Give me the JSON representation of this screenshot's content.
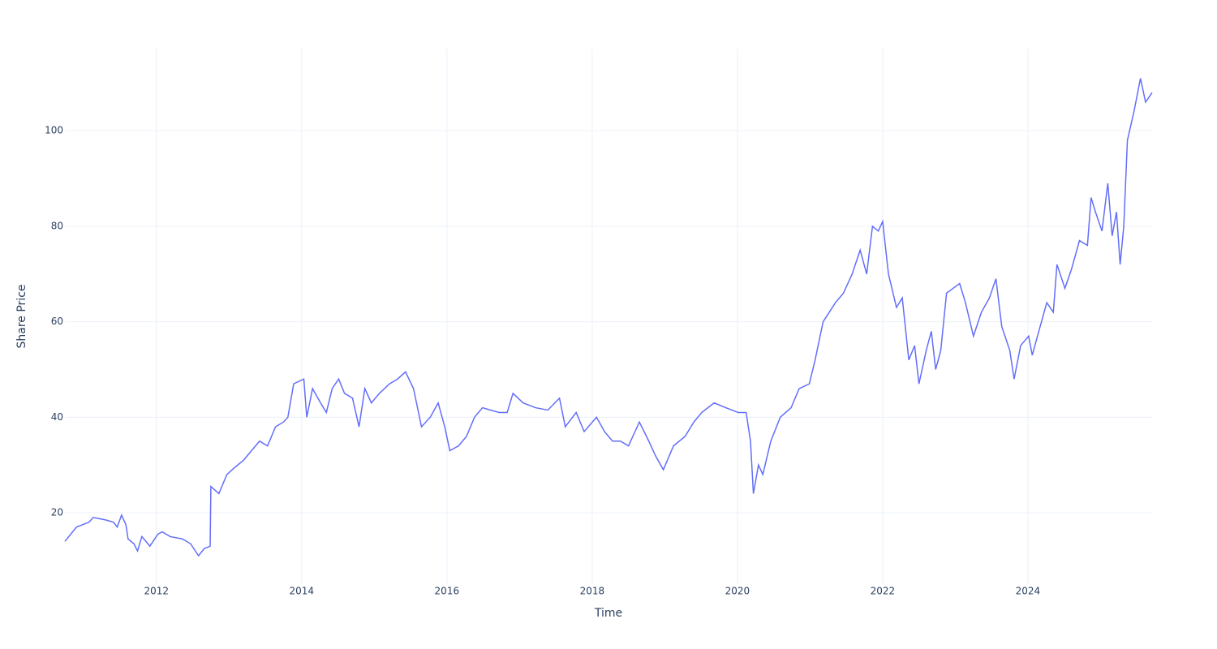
{
  "chart_data": {
    "type": "line",
    "xlabel": "Time",
    "ylabel": "Share Price",
    "xlim": [
      2010.74,
      2025.71
    ],
    "ylim": [
      5.05,
      117.2
    ],
    "xticks": [
      2012,
      2014,
      2016,
      2018,
      2020,
      2022,
      2024
    ],
    "yticks": [
      20,
      40,
      60,
      80,
      100
    ],
    "grid": true,
    "series": [
      {
        "color": "#636efa",
        "x": [
          2010.74,
          2010.9,
          2011.07,
          2011.13,
          2011.3,
          2011.41,
          2011.46,
          2011.52,
          2011.58,
          2011.61,
          2011.69,
          2011.74,
          2011.8,
          2011.91,
          2012.02,
          2012.08,
          2012.19,
          2012.36,
          2012.47,
          2012.58,
          2012.66,
          2012.74,
          2012.75,
          2012.86,
          2012.97,
          2013.08,
          2013.2,
          2013.31,
          2013.42,
          2013.53,
          2013.64,
          2013.75,
          2013.81,
          2013.89,
          2014.03,
          2014.07,
          2014.15,
          2014.26,
          2014.34,
          2014.42,
          2014.51,
          2014.59,
          2014.7,
          2014.79,
          2014.87,
          2014.96,
          2015.07,
          2015.21,
          2015.32,
          2015.43,
          2015.54,
          2015.65,
          2015.77,
          2015.88,
          2015.97,
          2016.04,
          2016.16,
          2016.27,
          2016.38,
          2016.49,
          2016.6,
          2016.72,
          2016.83,
          2016.91,
          2017.05,
          2017.22,
          2017.39,
          2017.55,
          2017.63,
          2017.78,
          2017.89,
          2018.06,
          2018.17,
          2018.28,
          2018.39,
          2018.5,
          2018.65,
          2018.78,
          2018.87,
          2018.98,
          2019.12,
          2019.28,
          2019.4,
          2019.51,
          2019.68,
          2019.84,
          2020.01,
          2020.12,
          2020.18,
          2020.22,
          2020.29,
          2020.35,
          2020.46,
          2020.59,
          2020.74,
          2020.85,
          2020.99,
          2021.07,
          2021.18,
          2021.35,
          2021.46,
          2021.58,
          2021.69,
          2021.78,
          2021.86,
          2021.94,
          2022.0,
          2022.08,
          2022.19,
          2022.27,
          2022.36,
          2022.44,
          2022.5,
          2022.6,
          2022.67,
          2022.73,
          2022.8,
          2022.88,
          2022.97,
          2023.06,
          2023.14,
          2023.25,
          2023.36,
          2023.47,
          2023.56,
          2023.64,
          2023.75,
          2023.81,
          2023.9,
          2024.01,
          2024.06,
          2024.15,
          2024.26,
          2024.35,
          2024.4,
          2024.51,
          2024.6,
          2024.71,
          2024.82,
          2024.87,
          2024.93,
          2025.02,
          2025.1,
          2025.16,
          2025.22,
          2025.27,
          2025.32,
          2025.37,
          2025.46,
          2025.55,
          2025.62,
          2025.71
        ],
        "values": [
          14,
          17,
          18,
          19,
          18.5,
          18,
          17,
          19.5,
          17.5,
          14.5,
          13.5,
          12,
          15,
          13,
          15.5,
          16,
          15,
          14.5,
          13.5,
          11,
          12.5,
          13,
          25.5,
          24,
          28,
          29.5,
          31,
          33,
          35,
          34,
          38,
          39,
          40,
          47,
          48,
          40,
          46,
          43,
          41,
          46,
          48,
          45,
          44,
          38,
          46,
          43,
          45,
          47,
          48,
          49.5,
          46,
          38,
          40,
          43,
          38,
          33,
          34,
          36,
          40,
          42,
          41.5,
          41,
          41,
          45,
          43,
          42,
          41.5,
          44,
          38,
          41,
          37,
          40,
          37,
          35,
          35,
          34,
          39,
          35,
          32,
          29,
          34,
          36,
          39,
          41,
          43,
          42,
          41,
          41,
          35,
          24,
          30,
          28,
          35,
          40,
          42,
          46,
          47,
          52,
          60,
          64,
          66,
          70,
          75,
          70,
          80,
          79,
          81,
          70,
          63,
          65,
          52,
          55,
          47,
          54,
          58,
          50,
          54,
          66,
          67,
          68,
          64,
          57,
          62,
          65,
          69,
          59,
          54,
          48,
          55,
          57,
          53,
          58,
          64,
          62,
          72,
          67,
          71,
          77,
          76,
          86,
          83,
          79,
          89,
          78,
          83,
          72,
          80,
          98,
          104,
          111,
          106,
          108
        ]
      }
    ]
  }
}
